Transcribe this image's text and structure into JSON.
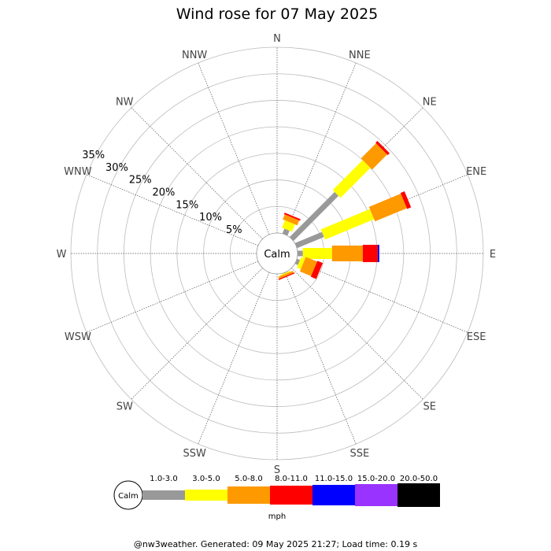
{
  "chart_data": {
    "type": "wind_rose",
    "title": "Wind rose for 07 May 2025",
    "directions": [
      "N",
      "NNE",
      "NE",
      "ENE",
      "E",
      "ESE",
      "SE",
      "SSE",
      "S",
      "SSW",
      "SW",
      "WSW",
      "W",
      "WNW",
      "NW",
      "NNW"
    ],
    "ring_percentages": [
      5,
      10,
      15,
      20,
      25,
      30,
      35
    ],
    "ring_labels": [
      "5%",
      "10%",
      "15%",
      "20%",
      "25%",
      "30%",
      "35%"
    ],
    "max_percent": 35,
    "calm_label": "Calm",
    "units": "mph",
    "speed_bins": [
      {
        "label": "1.0-3.0",
        "color": "#999999"
      },
      {
        "label": "3.0-5.0",
        "color": "#ffff00"
      },
      {
        "label": "5.0-8.0",
        "color": "#ff9900"
      },
      {
        "label": "8.0-11.0",
        "color": "#ff0000"
      },
      {
        "label": "11.0-15.0",
        "color": "#0000ff"
      },
      {
        "label": "15.0-20.0",
        "color": "#9933ff"
      },
      {
        "label": "20.0-50.0",
        "color": "#000000"
      }
    ],
    "series": [
      {
        "direction": "NNE",
        "values": [
          1.0,
          1.5,
          1.0,
          0.3,
          0,
          0,
          0
        ]
      },
      {
        "direction": "NE",
        "values": [
          12.0,
          8.0,
          4.0,
          0.5,
          0,
          0,
          0
        ]
      },
      {
        "direction": "ENE",
        "values": [
          5.5,
          10.0,
          6.5,
          0.8,
          0,
          0,
          0
        ]
      },
      {
        "direction": "E",
        "values": [
          1.0,
          5.5,
          5.8,
          2.8,
          0.3,
          0,
          0
        ]
      },
      {
        "direction": "ESE",
        "values": [
          0.6,
          0.8,
          2.3,
          1.1,
          0,
          0,
          0
        ]
      },
      {
        "direction": "SSE",
        "values": [
          0.1,
          0.2,
          0.4,
          0.2,
          0,
          0,
          0
        ]
      }
    ],
    "grid": true,
    "legend_position": "bottom"
  },
  "footer": "@nw3weather. Generated: 09 May 2025 21:27; Load time: 0.19 s"
}
